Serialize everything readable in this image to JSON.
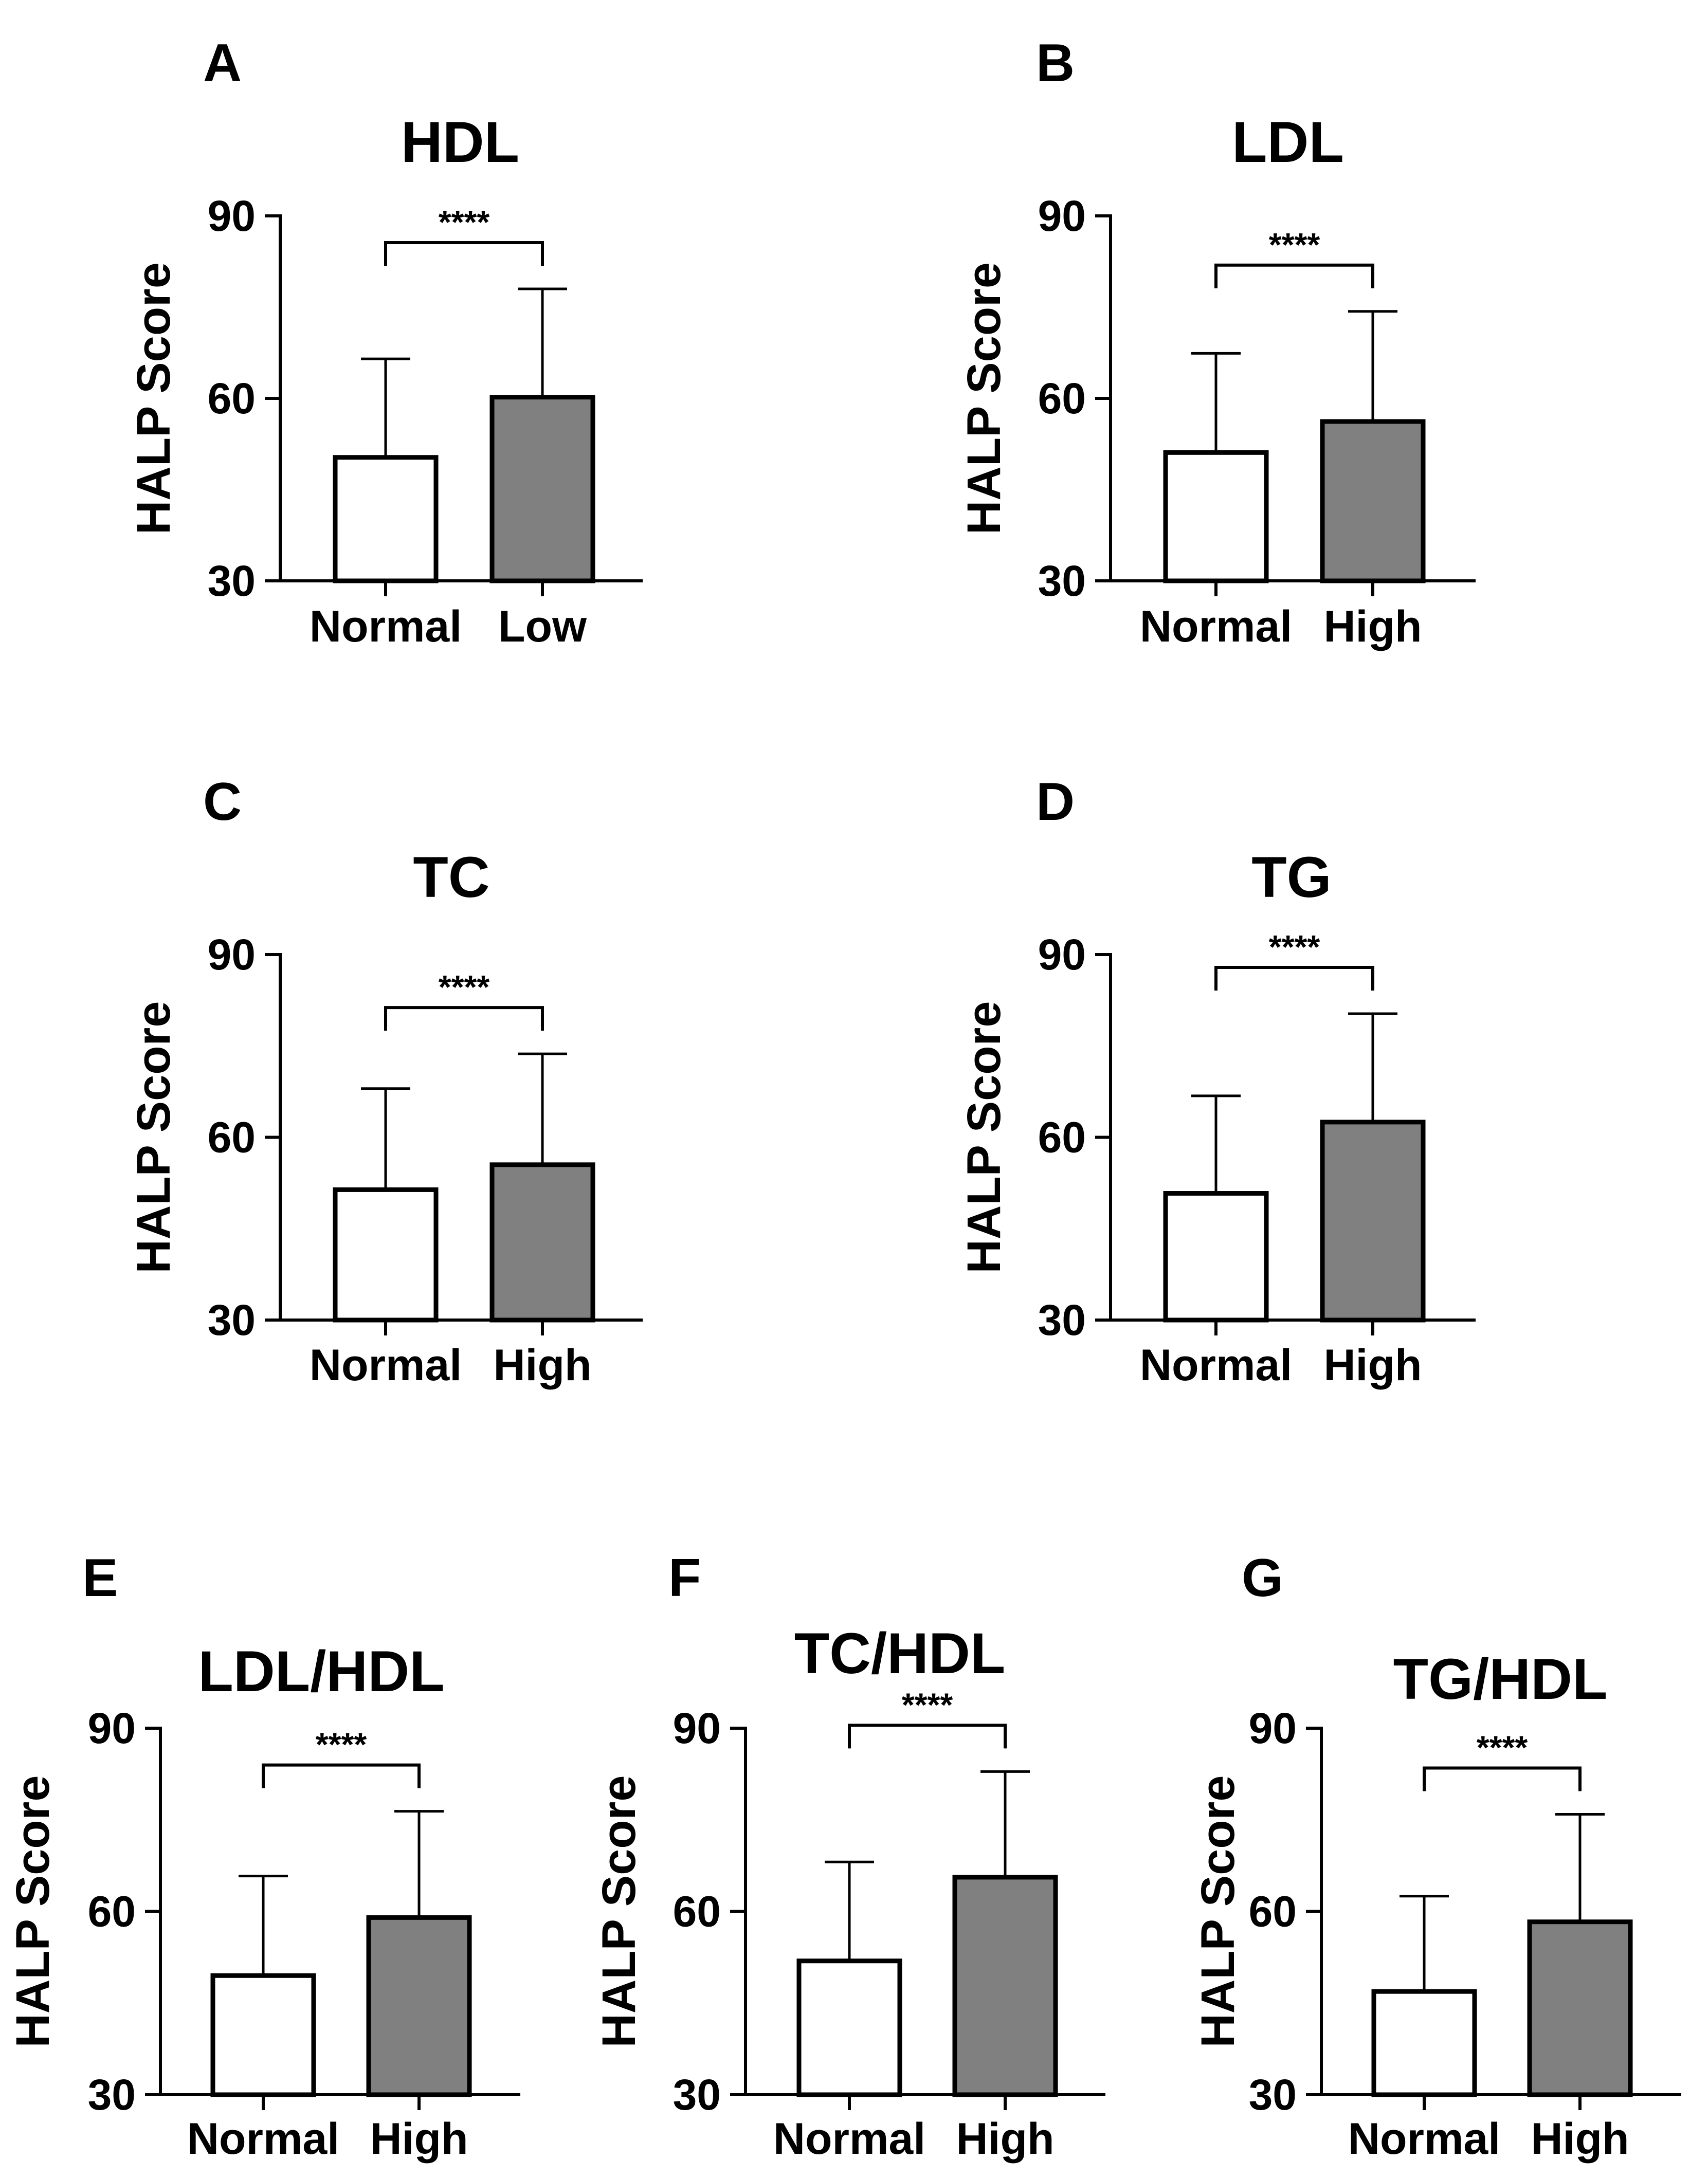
{
  "figure": {
    "panel_letters": [
      "A",
      "B",
      "C",
      "D",
      "E",
      "F",
      "G"
    ],
    "colors": {
      "normal_fill": "#ffffff",
      "abnormal_fill": "#808080",
      "stroke": "#000000"
    }
  },
  "chart_data": [
    {
      "panel": "A",
      "type": "bar",
      "title": "HDL",
      "xlabel": "",
      "ylabel": "HALP Score",
      "ylim": [
        30,
        90
      ],
      "yticks": [
        30,
        60,
        90
      ],
      "categories": [
        "Normal",
        "Low"
      ],
      "values": [
        50.3,
        60.2
      ],
      "error_plus": [
        16.2,
        17.8
      ],
      "fills": [
        "#ffffff",
        "#808080"
      ],
      "significance": "****"
    },
    {
      "panel": "B",
      "type": "bar",
      "title": "LDL",
      "xlabel": "",
      "ylabel": "HALP Score",
      "ylim": [
        30,
        90
      ],
      "yticks": [
        30,
        60,
        90
      ],
      "categories": [
        "Normal",
        "High"
      ],
      "values": [
        51.1,
        56.2
      ],
      "error_plus": [
        16.3,
        18.1
      ],
      "fills": [
        "#ffffff",
        "#808080"
      ],
      "significance": "****"
    },
    {
      "panel": "C",
      "type": "bar",
      "title": "TC",
      "xlabel": "",
      "ylabel": "HALP Score",
      "ylim": [
        30,
        90
      ],
      "yticks": [
        30,
        60,
        90
      ],
      "categories": [
        "Normal",
        "High"
      ],
      "values": [
        51.4,
        55.5
      ],
      "error_plus": [
        16.6,
        18.2
      ],
      "fills": [
        "#ffffff",
        "#808080"
      ],
      "significance": "****"
    },
    {
      "panel": "D",
      "type": "bar",
      "title": "TG",
      "xlabel": "",
      "ylabel": "HALP Score",
      "ylim": [
        30,
        90
      ],
      "yticks": [
        30,
        60,
        90
      ],
      "categories": [
        "Normal",
        "High"
      ],
      "values": [
        50.8,
        62.5
      ],
      "error_plus": [
        16.0,
        17.8
      ],
      "fills": [
        "#ffffff",
        "#808080"
      ],
      "significance": "****"
    },
    {
      "panel": "E",
      "type": "bar",
      "title": "LDL/HDL",
      "xlabel": "",
      "ylabel": "HALP Score",
      "ylim": [
        30,
        90
      ],
      "yticks": [
        30,
        60,
        90
      ],
      "categories": [
        "Normal",
        "High"
      ],
      "values": [
        49.5,
        59.0
      ],
      "error_plus": [
        16.3,
        17.4
      ],
      "fills": [
        "#ffffff",
        "#808080"
      ],
      "significance": "****"
    },
    {
      "panel": "F",
      "type": "bar",
      "title": "TC/HDL",
      "xlabel": "",
      "ylabel": "HALP Score",
      "ylim": [
        30,
        90
      ],
      "yticks": [
        30,
        60,
        90
      ],
      "categories": [
        "Normal",
        "High"
      ],
      "values": [
        51.9,
        65.6
      ],
      "error_plus": [
        16.2,
        17.3
      ],
      "fills": [
        "#ffffff",
        "#808080"
      ],
      "significance": "****"
    },
    {
      "panel": "G",
      "type": "bar",
      "title": "TG/HDL",
      "xlabel": "",
      "ylabel": "HALP Score",
      "ylim": [
        30,
        90
      ],
      "yticks": [
        30,
        60,
        90
      ],
      "categories": [
        "Normal",
        "High"
      ],
      "values": [
        46.9,
        58.3
      ],
      "error_plus": [
        15.6,
        17.6
      ],
      "fills": [
        "#ffffff",
        "#808080"
      ],
      "significance": "****"
    }
  ]
}
